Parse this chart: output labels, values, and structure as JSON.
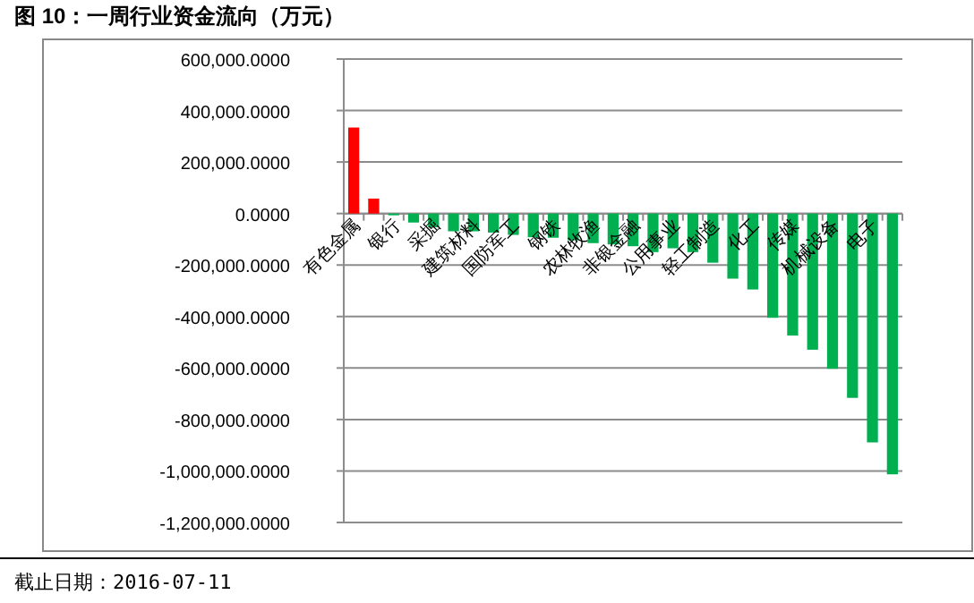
{
  "chart_data": {
    "type": "bar",
    "title": "图 10：一周行业资金流向（万元）",
    "annotations": [
      "截止日期：2016-07-11"
    ],
    "categories": [
      "有色金属",
      null,
      "银行",
      null,
      "采掘",
      null,
      "建筑材料",
      null,
      "国防军工",
      null,
      "钢铁",
      null,
      "农林牧渔",
      null,
      "非银金融",
      null,
      "公用事业",
      null,
      "轻工制造",
      null,
      "化工",
      null,
      "传媒",
      null,
      "机械设备",
      null,
      "电子",
      null
    ],
    "values": [
      334000,
      58000,
      -7000,
      -35000,
      -53000,
      -69000,
      -69000,
      -74000,
      -83000,
      -92000,
      -94000,
      -104000,
      -115000,
      -120000,
      -127000,
      -150000,
      -135000,
      -150000,
      -191000,
      -253000,
      -295000,
      -405000,
      -474000,
      -529000,
      -603000,
      -716000,
      -889000,
      -1013000
    ],
    "colors": [
      "#ff0000",
      "#ff0000",
      "#00b050",
      "#00b050",
      "#00b050",
      "#00b050",
      "#00b050",
      "#00b050",
      "#00b050",
      "#00b050",
      "#00b050",
      "#00b050",
      "#00b050",
      "#00b050",
      "#00b050",
      "#00b050",
      "#00b050",
      "#00b050",
      "#00b050",
      "#00b050",
      "#00b050",
      "#00b050",
      "#00b050",
      "#00b050",
      "#00b050",
      "#00b050",
      "#00b050",
      "#00b050"
    ],
    "ylim": [
      -1200000,
      600000
    ],
    "yticks": [
      {
        "value": 600000,
        "label": "600,000.0000"
      },
      {
        "value": 400000,
        "label": "400,000.0000"
      },
      {
        "value": 200000,
        "label": "200,000.0000"
      },
      {
        "value": 0,
        "label": "0.0000"
      },
      {
        "value": -200000,
        "label": "-200,000.0000"
      },
      {
        "value": -400000,
        "label": "-400,000.0000"
      },
      {
        "value": -600000,
        "label": "-600,000.0000"
      },
      {
        "value": -800000,
        "label": "-800,000.0000"
      },
      {
        "value": -1000000,
        "label": "-1,000,000.0000"
      },
      {
        "value": -1200000,
        "label": "-1,200,000.0000"
      }
    ],
    "grid": "y"
  }
}
